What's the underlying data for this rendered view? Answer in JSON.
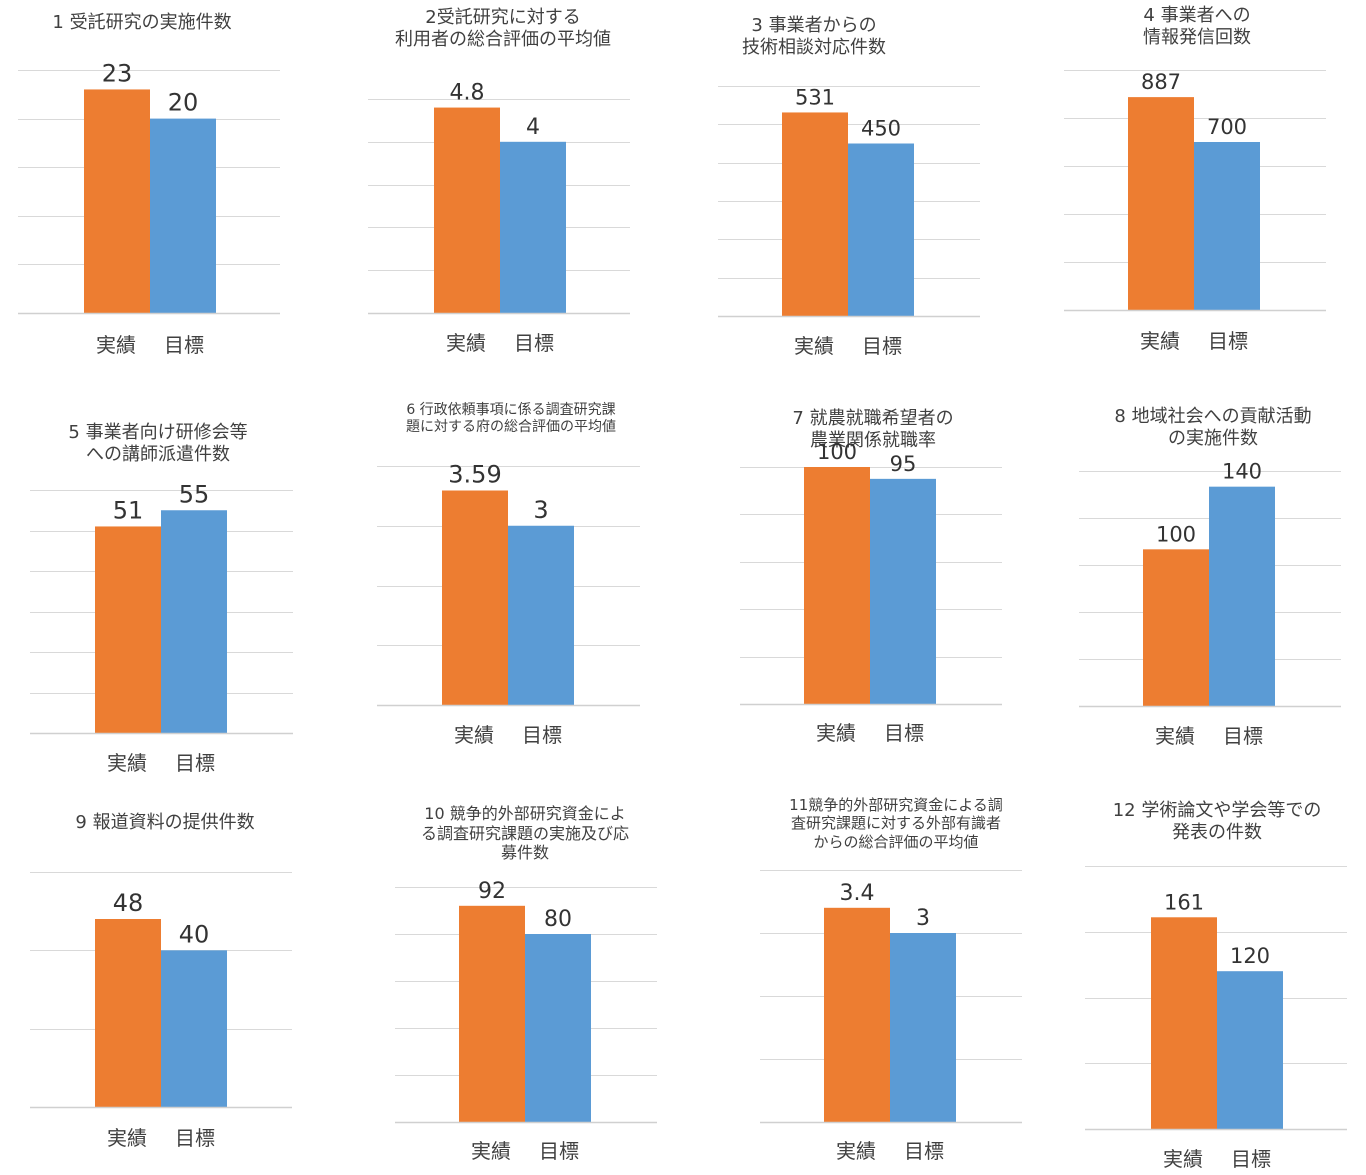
{
  "colors": {
    "actual": "#ED7D31",
    "target": "#5B9BD5"
  },
  "chart_data": [
    {
      "type": "bar",
      "title": [
        "1 受託研究の実施件数"
      ],
      "categories": [
        "実績",
        "目標"
      ],
      "values": [
        23,
        20
      ],
      "value_labels": [
        "23",
        "20"
      ],
      "ylim": [
        0,
        25
      ],
      "grid_step": 5,
      "xlabel": "",
      "ylabel": ""
    },
    {
      "type": "bar",
      "title": [
        "2受託研究に対する",
        "利用者の総合評価の平均値"
      ],
      "categories": [
        "実績",
        "目標"
      ],
      "values": [
        4.8,
        4
      ],
      "value_labels": [
        "4.8",
        "4"
      ],
      "ylim": [
        0,
        5
      ],
      "grid_step": 1,
      "xlabel": "",
      "ylabel": ""
    },
    {
      "type": "bar",
      "title": [
        "3 事業者からの",
        "技術相談対応件数"
      ],
      "categories": [
        "実績",
        "目標"
      ],
      "values": [
        531,
        450
      ],
      "value_labels": [
        "531",
        "450"
      ],
      "ylim": [
        0,
        600
      ],
      "grid_step": 100,
      "xlabel": "",
      "ylabel": ""
    },
    {
      "type": "bar",
      "title": [
        "4 事業者への",
        "情報発信回数"
      ],
      "categories": [
        "実績",
        "目標"
      ],
      "values": [
        887,
        700
      ],
      "value_labels": [
        "887",
        "700"
      ],
      "ylim": [
        0,
        1000
      ],
      "grid_step": 200,
      "xlabel": "",
      "ylabel": ""
    },
    {
      "type": "bar",
      "title": [
        "5 事業者向け研修会等",
        "への講師派遣件数"
      ],
      "categories": [
        "実績",
        "目標"
      ],
      "values": [
        51,
        55
      ],
      "value_labels": [
        "51",
        "55"
      ],
      "ylim": [
        0,
        60
      ],
      "grid_step": 10,
      "xlabel": "",
      "ylabel": ""
    },
    {
      "type": "bar",
      "title": [
        "6 行政依頼事項に係る調査研究課",
        "題に対する府の総合評価の平均値"
      ],
      "categories": [
        "実績",
        "目標"
      ],
      "values": [
        3.59,
        3
      ],
      "value_labels": [
        "3.59",
        "3"
      ],
      "ylim": [
        0,
        4
      ],
      "grid_step": 1,
      "xlabel": "",
      "ylabel": ""
    },
    {
      "type": "bar",
      "title": [
        "7 就農就職希望者の",
        "農業関係就職率"
      ],
      "categories": [
        "実績",
        "目標"
      ],
      "values": [
        100,
        95
      ],
      "value_labels": [
        "100",
        "95"
      ],
      "ylim": [
        0,
        100
      ],
      "grid_step": 20,
      "xlabel": "",
      "ylabel": ""
    },
    {
      "type": "bar",
      "title": [
        "8 地域社会への貢献活動",
        "の実施件数"
      ],
      "categories": [
        "実績",
        "目標"
      ],
      "values": [
        100,
        140
      ],
      "value_labels": [
        "100",
        "140"
      ],
      "ylim": [
        0,
        150
      ],
      "grid_step": 30,
      "xlabel": "",
      "ylabel": ""
    },
    {
      "type": "bar",
      "title": [
        "9 報道資料の提供件数"
      ],
      "categories": [
        "実績",
        "目標"
      ],
      "values": [
        48,
        40
      ],
      "value_labels": [
        "48",
        "40"
      ],
      "ylim": [
        0,
        60
      ],
      "grid_step": 20,
      "xlabel": "",
      "ylabel": ""
    },
    {
      "type": "bar",
      "title": [
        "10 競争的外部研究資金によ",
        "る調査研究課題の実施及び応",
        "募件数"
      ],
      "categories": [
        "実績",
        "目標"
      ],
      "values": [
        92,
        80
      ],
      "value_labels": [
        "92",
        "80"
      ],
      "ylim": [
        0,
        100
      ],
      "grid_step": 20,
      "xlabel": "",
      "ylabel": ""
    },
    {
      "type": "bar",
      "title": [
        "11競争的外部研究資金による調",
        "査研究課題に対する外部有識者",
        "からの総合評価の平均値"
      ],
      "categories": [
        "実績",
        "目標"
      ],
      "values": [
        3.4,
        3
      ],
      "value_labels": [
        "3.4",
        "3"
      ],
      "ylim": [
        0,
        4
      ],
      "grid_step": 1,
      "xlabel": "",
      "ylabel": ""
    },
    {
      "type": "bar",
      "title": [
        "12 学術論文や学会等での",
        "発表の件数"
      ],
      "categories": [
        "実績",
        "目標"
      ],
      "values": [
        161,
        120
      ],
      "value_labels": [
        "161",
        "120"
      ],
      "ylim": [
        0,
        200
      ],
      "grid_step": 50,
      "xlabel": "",
      "ylabel": ""
    }
  ]
}
